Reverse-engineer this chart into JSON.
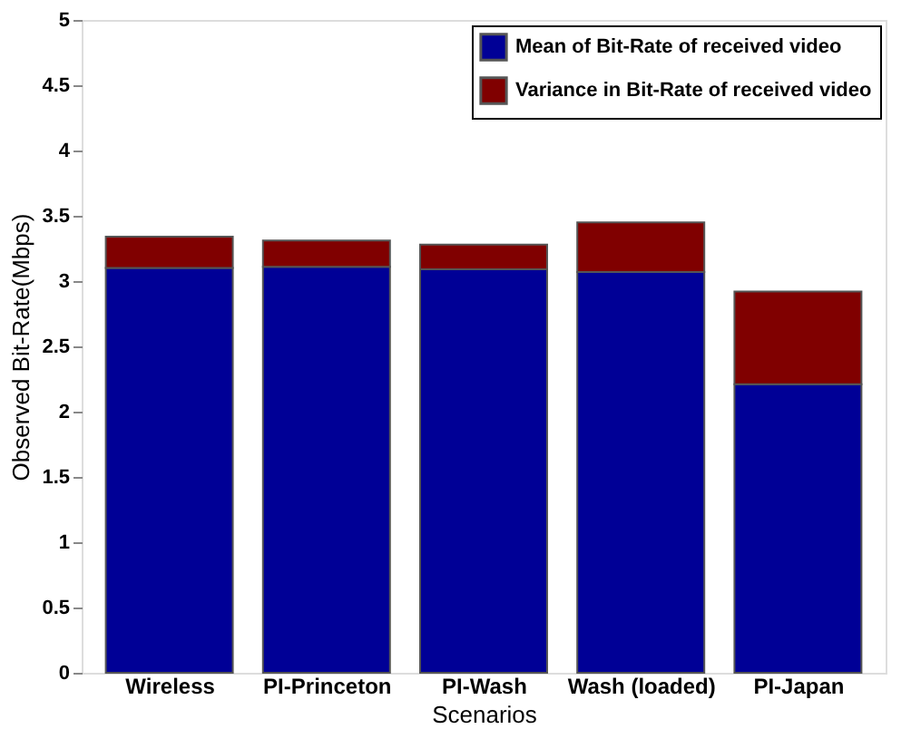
{
  "chart_data": {
    "type": "bar",
    "stacked": true,
    "xlabel": "Scenarios",
    "ylabel": "Observed Bit-Rate(Mbps)",
    "categories": [
      "Wireless",
      "PI-Princeton",
      "PI-Wash",
      "Wash (loaded)",
      "PI-Japan"
    ],
    "series": [
      {
        "name": "Mean of Bit-Rate of received video",
        "color": "#000096",
        "values": [
          3.1,
          3.11,
          3.09,
          3.07,
          2.21
        ]
      },
      {
        "name": "Variance in Bit-Rate of received video",
        "color": "#800000",
        "values": [
          0.24,
          0.2,
          0.19,
          0.38,
          0.71
        ]
      }
    ],
    "ylim": [
      0,
      5
    ],
    "yticks": [
      0,
      0.5,
      1,
      1.5,
      2,
      2.5,
      3,
      3.5,
      4,
      4.5,
      5
    ],
    "grid": false,
    "legend": "top right"
  }
}
